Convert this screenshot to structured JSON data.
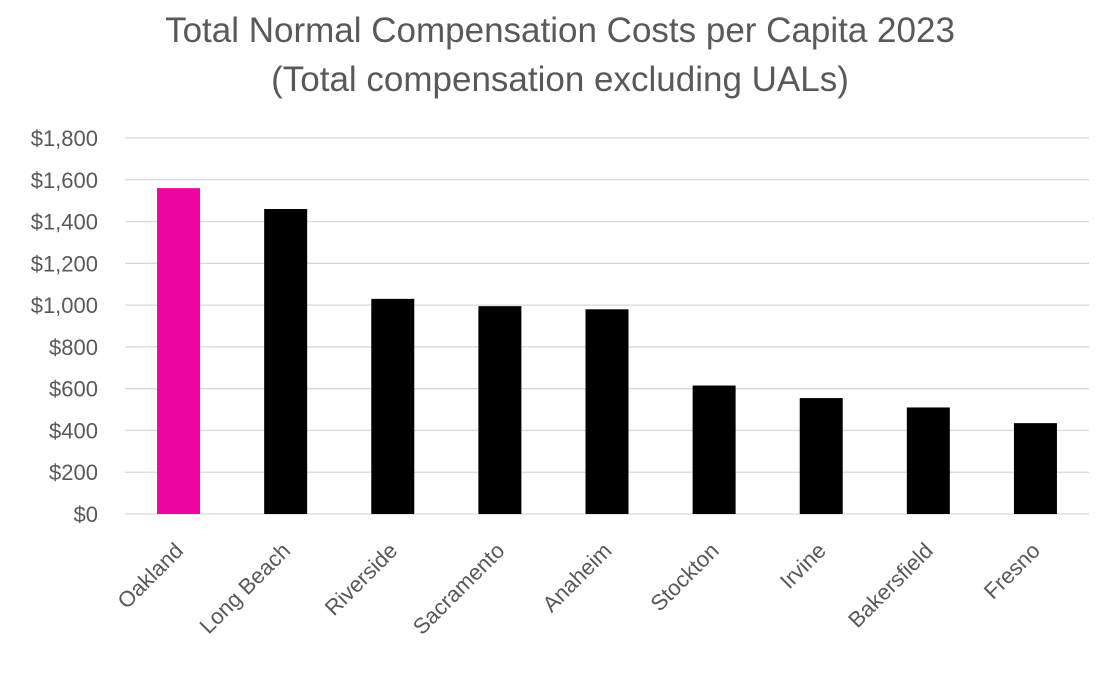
{
  "chart_data": {
    "type": "bar",
    "title_lines": [
      "Total Normal Compensation Costs per Capita 2023",
      "(Total compensation excluding UALs)"
    ],
    "xlabel": "",
    "ylabel": "",
    "categories": [
      "Oakland",
      "Long Beach",
      "Riverside",
      "Sacramento",
      "Anaheim",
      "Stockton",
      "Irvine",
      "Bakersfield",
      "Fresno"
    ],
    "series": [
      {
        "values": [
          1560,
          1460,
          1030,
          995,
          980,
          615,
          555,
          510,
          435
        ]
      }
    ],
    "ylim": [
      0,
      1800
    ],
    "yticks": [
      0,
      200,
      400,
      600,
      800,
      1000,
      1200,
      1400,
      1600,
      1800
    ],
    "ytick_labels": [
      "$0",
      "$200",
      "$400",
      "$600",
      "$800",
      "$1,000",
      "$1,200",
      "$1,400",
      "$1,600",
      "$1,800"
    ],
    "grid": true,
    "legend": "none",
    "colors": {
      "highlight": "#ec059e",
      "bar": "#000000",
      "grid": "#d9d9d9",
      "text": "#595959"
    },
    "highlight_category": "Oakland"
  }
}
